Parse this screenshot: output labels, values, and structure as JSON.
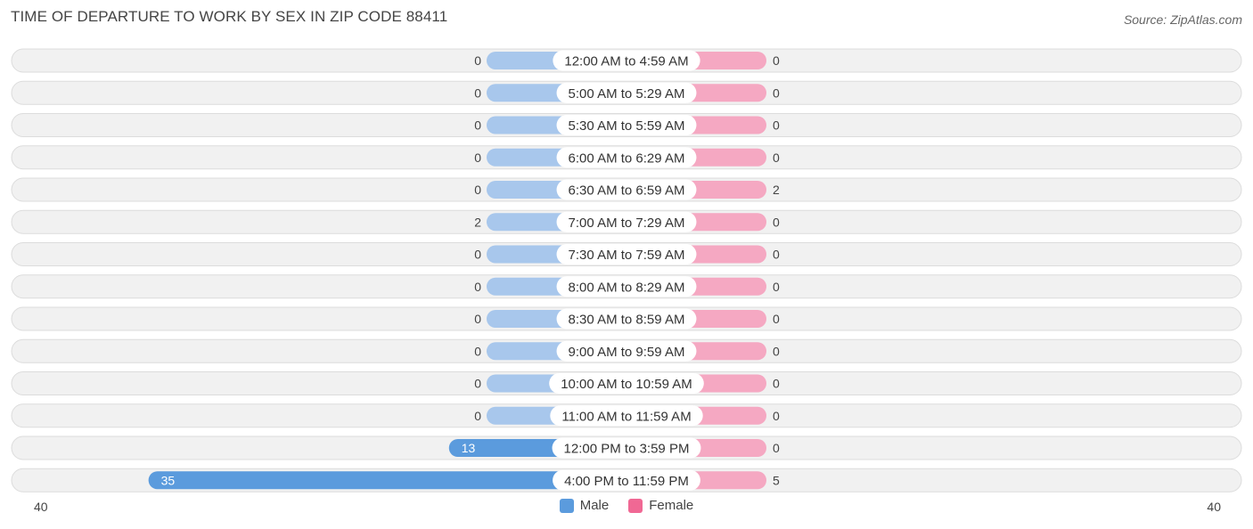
{
  "title": "TIME OF DEPARTURE TO WORK BY SEX IN ZIP CODE 88411",
  "source": "Source: ZipAtlas.com",
  "colors": {
    "male": "#5b9bdd",
    "male_light": "#a8c7ec",
    "female": "#f06894",
    "female_light": "#f5a8c2",
    "row_bg": "#f1f1f1",
    "row_border": "#dcdcdc"
  },
  "legend": {
    "male": "Male",
    "female": "Female"
  },
  "axis": {
    "left_max": "40",
    "right_max": "40"
  },
  "chart_data": {
    "type": "bar",
    "orientation": "horizontal-diverging",
    "title": "TIME OF DEPARTURE TO WORK BY SEX IN ZIP CODE 88411",
    "xlim": [
      0,
      40
    ],
    "categories": [
      "12:00 AM to 4:59 AM",
      "5:00 AM to 5:29 AM",
      "5:30 AM to 5:59 AM",
      "6:00 AM to 6:29 AM",
      "6:30 AM to 6:59 AM",
      "7:00 AM to 7:29 AM",
      "7:30 AM to 7:59 AM",
      "8:00 AM to 8:29 AM",
      "8:30 AM to 8:59 AM",
      "9:00 AM to 9:59 AM",
      "10:00 AM to 10:59 AM",
      "11:00 AM to 11:59 AM",
      "12:00 PM to 3:59 PM",
      "4:00 PM to 11:59 PM"
    ],
    "series": [
      {
        "name": "Male",
        "values": [
          0,
          0,
          0,
          0,
          0,
          2,
          0,
          0,
          0,
          0,
          0,
          0,
          13,
          35
        ]
      },
      {
        "name": "Female",
        "values": [
          0,
          0,
          0,
          0,
          2,
          0,
          0,
          0,
          0,
          0,
          0,
          0,
          0,
          5
        ]
      }
    ],
    "legend_position": "bottom-center"
  }
}
